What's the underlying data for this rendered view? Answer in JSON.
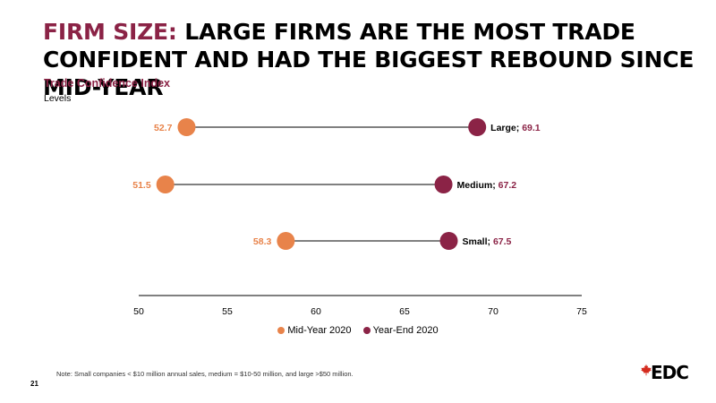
{
  "title": {
    "accent": "FIRM SIZE:",
    "rest": " LARGE FIRMS ARE THE MOST TRADE CONFIDENT AND HAD THE BIGGEST REBOUND SINCE MID-YEAR"
  },
  "subtitle": "Trade Confidence Index",
  "units": "Levels",
  "chart_data": {
    "type": "dumbbell",
    "categories": [
      "Large",
      "Medium",
      "Small"
    ],
    "series": [
      {
        "name": "Mid-Year 2020",
        "values": [
          52.7,
          51.5,
          58.3
        ],
        "color": "#e8834a"
      },
      {
        "name": "Year-End 2020",
        "values": [
          69.1,
          67.2,
          67.5
        ],
        "color": "#8b2346"
      }
    ],
    "xlim": [
      50,
      75
    ],
    "xticks": [
      "50",
      "55",
      "60",
      "65",
      "70",
      "75"
    ],
    "left_labels": [
      "52.7",
      "51.5",
      "58.3"
    ],
    "right_labels": [
      {
        "category": "Large",
        "sep": ";",
        "value": "69.1"
      },
      {
        "category": "Medium",
        "sep": ";",
        "value": "67.2"
      },
      {
        "category": "Small",
        "sep": ";",
        "value": "67.5"
      }
    ],
    "legend_position": "bottom"
  },
  "legend": {
    "mid": {
      "label": "Mid-Year 2020",
      "color": "#e8834a"
    },
    "end": {
      "label": "Year-End 2020",
      "color": "#8b2346"
    }
  },
  "note": "Note: Small companies < $10 million annual sales, medium = $10-50 million, and large >$50 million.",
  "page_number": "21",
  "logo": {
    "text": "EDC",
    "icon": "maple-leaf-icon",
    "color": "#d52b1e"
  }
}
